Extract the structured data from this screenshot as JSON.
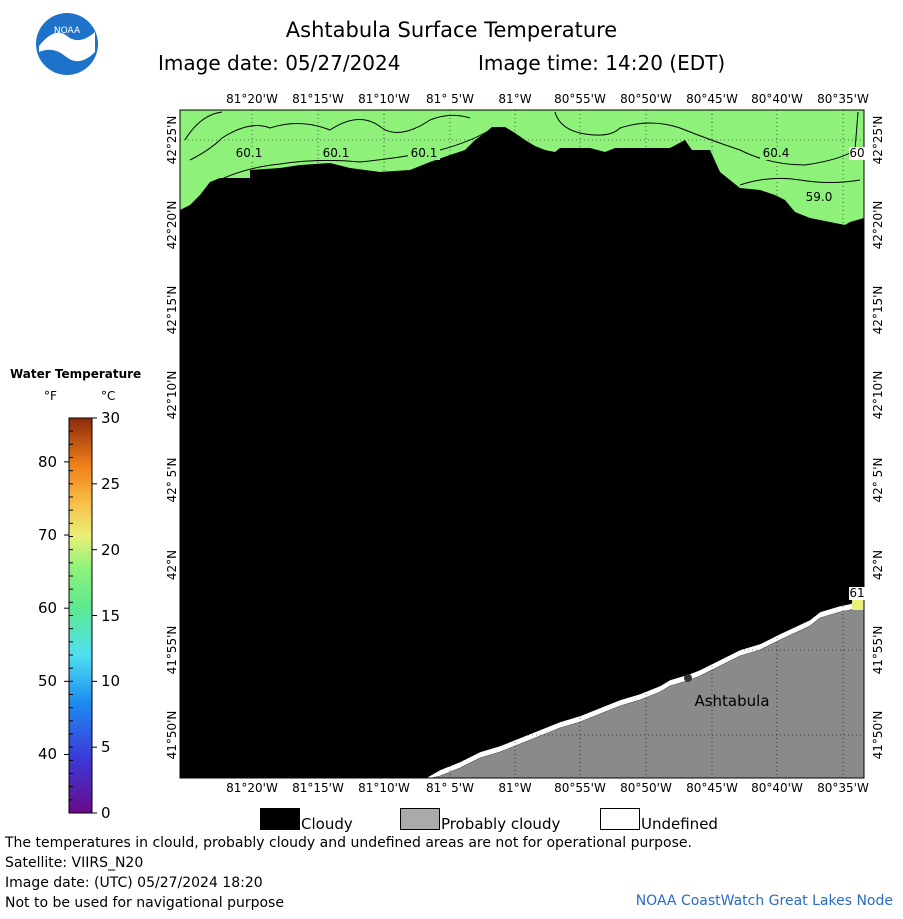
{
  "header": {
    "title": "Ashtabula Surface Temperature",
    "image_date": "Image date: 05/27/2024",
    "image_time": "Image time: 14:20 (EDT)",
    "logo_text": "NOAA"
  },
  "legend": {
    "title": "Water Temperature",
    "unit_f": "°F",
    "unit_c": "°C",
    "f_ticks": [
      "80",
      "70",
      "60",
      "50",
      "40"
    ],
    "c_ticks": [
      "30",
      "25",
      "20",
      "15",
      "10",
      "5",
      "0"
    ]
  },
  "map": {
    "lon_labels": [
      "81°20'W",
      "81°15'W",
      "81°10'W",
      "81° 5'W",
      "81°W",
      "80°55'W",
      "80°50'W",
      "80°45'W",
      "80°40'W",
      "80°35'W"
    ],
    "lat_labels": [
      "42°25'N",
      "42°20'N",
      "42°15'N",
      "42°10'N",
      "42° 5'N",
      "42°N",
      "41°55'N",
      "41°50'N"
    ],
    "contour_labels": [
      "60.1",
      "60.1",
      "60.1",
      "60.4",
      "59.0",
      "60",
      "61"
    ],
    "city": "Ashtabula"
  },
  "key": {
    "cloudy": "Cloudy",
    "probably_cloudy": "Probably cloudy",
    "undefined": "Undefined"
  },
  "footer": {
    "notice": "The temperatures in clould, probably cloudy and undefined areas are not for operational purpose.",
    "satellite": "Satellite: VIIRS_N20",
    "utc_date": "Image date: (UTC) 05/27/2024  18:20",
    "nav_warning": "Not to be used for navigational purpose",
    "credit": "NOAA CoastWatch Great Lakes Node"
  },
  "colors": {
    "water_green": "#8ef27a",
    "cloud": "#000000",
    "land": "#888888",
    "credit_blue": "#2a6bc4"
  }
}
